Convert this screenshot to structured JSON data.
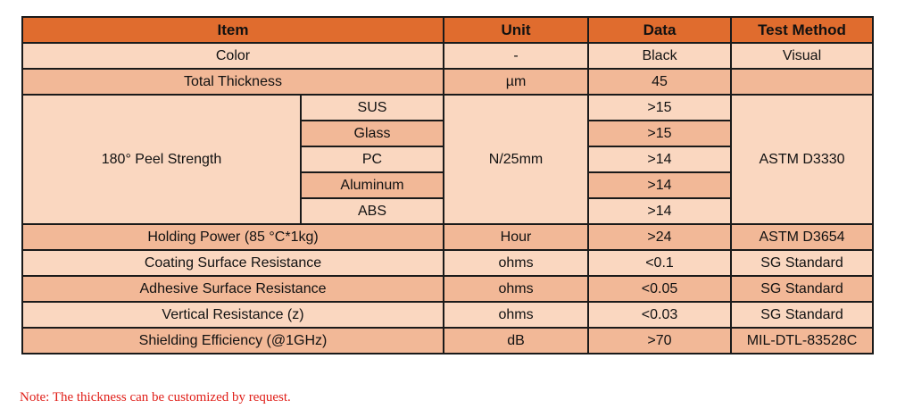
{
  "colors": {
    "header": "#E06C2E",
    "row_light": "#FAD7C0",
    "row_medium": "#F2B897",
    "note": "#e0201a"
  },
  "headers": [
    "Item",
    "Unit",
    "Data",
    "Test Method"
  ],
  "rows_top": [
    {
      "item": "Color",
      "unit": "-",
      "data": "Black",
      "method": "Visual"
    },
    {
      "item": "Total Thickness",
      "unit": "µm",
      "data": "45",
      "method": ""
    }
  ],
  "peel": {
    "item": "180° Peel Strength",
    "unit": "N/25mm",
    "method": "ASTM D3330",
    "subs": [
      {
        "sub": "SUS",
        "data": ">15"
      },
      {
        "sub": "Glass",
        "data": ">15"
      },
      {
        "sub": "PC",
        "data": ">14"
      },
      {
        "sub": "Aluminum",
        "data": ">14"
      },
      {
        "sub": "ABS",
        "data": ">14"
      }
    ]
  },
  "rows_bottom": [
    {
      "item": "Holding Power (85 °C*1kg)",
      "unit": "Hour",
      "data": ">24",
      "method": "ASTM D3654"
    },
    {
      "item": "Coating Surface Resistance",
      "unit": "ohms",
      "data": "<0.1",
      "method": "SG Standard"
    },
    {
      "item": "Adhesive Surface Resistance",
      "unit": "ohms",
      "data": "<0.05",
      "method": "SG Standard"
    },
    {
      "item": "Vertical Resistance (z)",
      "unit": "ohms",
      "data": "<0.03",
      "method": "SG Standard"
    },
    {
      "item": "Shielding Efficiency (@1GHz)",
      "unit": "dB",
      "data": ">70",
      "method": "MIL-DTL-83528C"
    }
  ],
  "note": "Note: The thickness can be customized by request."
}
